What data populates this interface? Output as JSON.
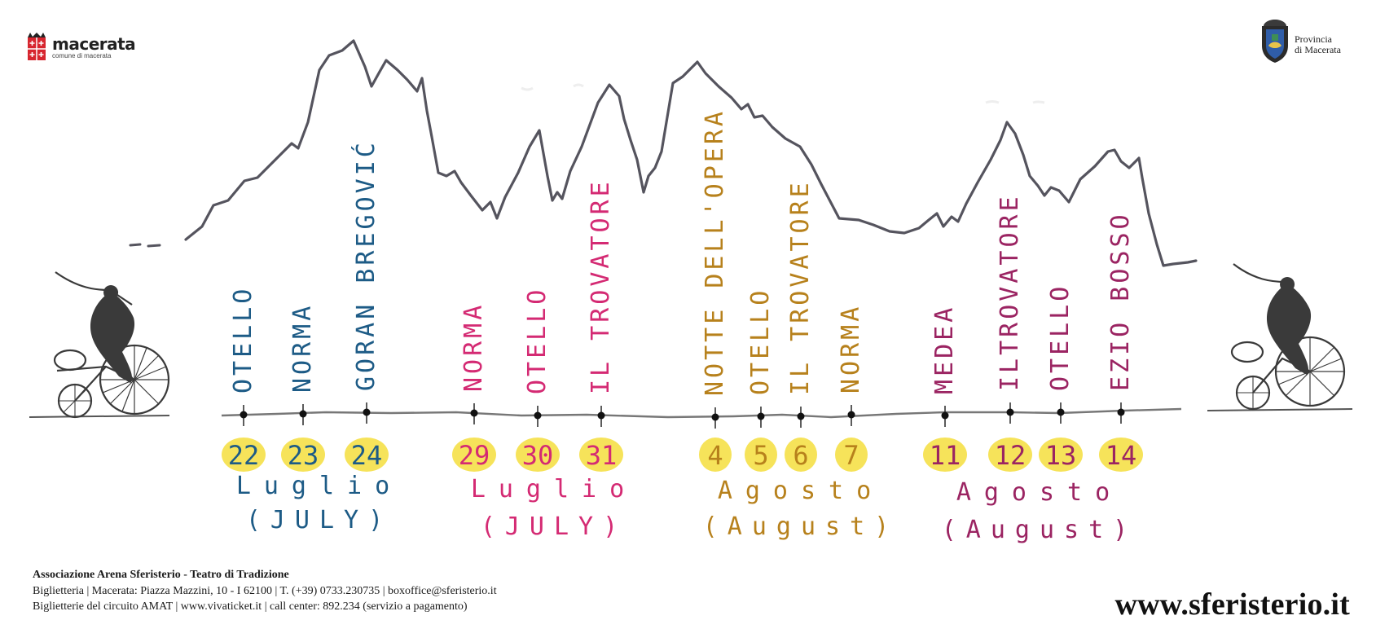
{
  "logos": {
    "left": {
      "name": "macerata",
      "subtitle": "comune di macerata"
    },
    "right": {
      "line1": "Provincia",
      "line2": "di Macerata"
    }
  },
  "colors": {
    "blue": "#1d5b86",
    "magenta": "#d42a73",
    "ochre": "#b7811c",
    "purple": "#9b2462",
    "yellow": "#f6e35a",
    "mountain": "#55545e",
    "timeline": "#777777"
  },
  "events": [
    {
      "date": "22",
      "title": "OTELLO",
      "color": "blue"
    },
    {
      "date": "23",
      "title": "NORMA",
      "color": "blue"
    },
    {
      "date": "24",
      "title": "GORAN BREGOVIĆ",
      "color": "blue"
    },
    {
      "date": "29",
      "title": "NORMA",
      "color": "magenta"
    },
    {
      "date": "30",
      "title": "OTELLO",
      "color": "magenta"
    },
    {
      "date": "31",
      "title": "IL TROVATORE",
      "color": "magenta"
    },
    {
      "date": "4",
      "title": "NOTTE DELL'OPERA",
      "color": "ochre"
    },
    {
      "date": "5",
      "title": "OTELLO",
      "color": "ochre"
    },
    {
      "date": "6",
      "title": "IL TROVATORE",
      "color": "ochre"
    },
    {
      "date": "7",
      "title": "NORMA",
      "color": "ochre"
    },
    {
      "date": "11",
      "title": "MEDEA",
      "color": "purple"
    },
    {
      "date": "12",
      "title": "ILTROVATORE",
      "color": "purple"
    },
    {
      "date": "13",
      "title": "OTELLO",
      "color": "purple"
    },
    {
      "date": "14",
      "title": "EZIO BOSSO",
      "color": "purple"
    }
  ],
  "months": [
    {
      "name": "Luglio",
      "english": "(JULY)",
      "color": "blue"
    },
    {
      "name": "Luglio",
      "english": "(JULY)",
      "color": "magenta"
    },
    {
      "name": "Agosto",
      "english": "(August)",
      "color": "ochre"
    },
    {
      "name": "Agosto",
      "english": "(August)",
      "color": "purple"
    }
  ],
  "footer": {
    "org": "Associazione Arena Sferisterio - Teatro di Tradizione",
    "line1": "Biglietteria | Macerata: Piazza Mazzini, 10 - I 62100 | T. (+39) 0733.230735 | boxoffice@sferisterio.it",
    "line2": "Biglietterie del circuito AMAT | www.vivaticket.it | call center: 892.234 (servizio a pagamento)"
  },
  "website": "www.sferisterio.it"
}
